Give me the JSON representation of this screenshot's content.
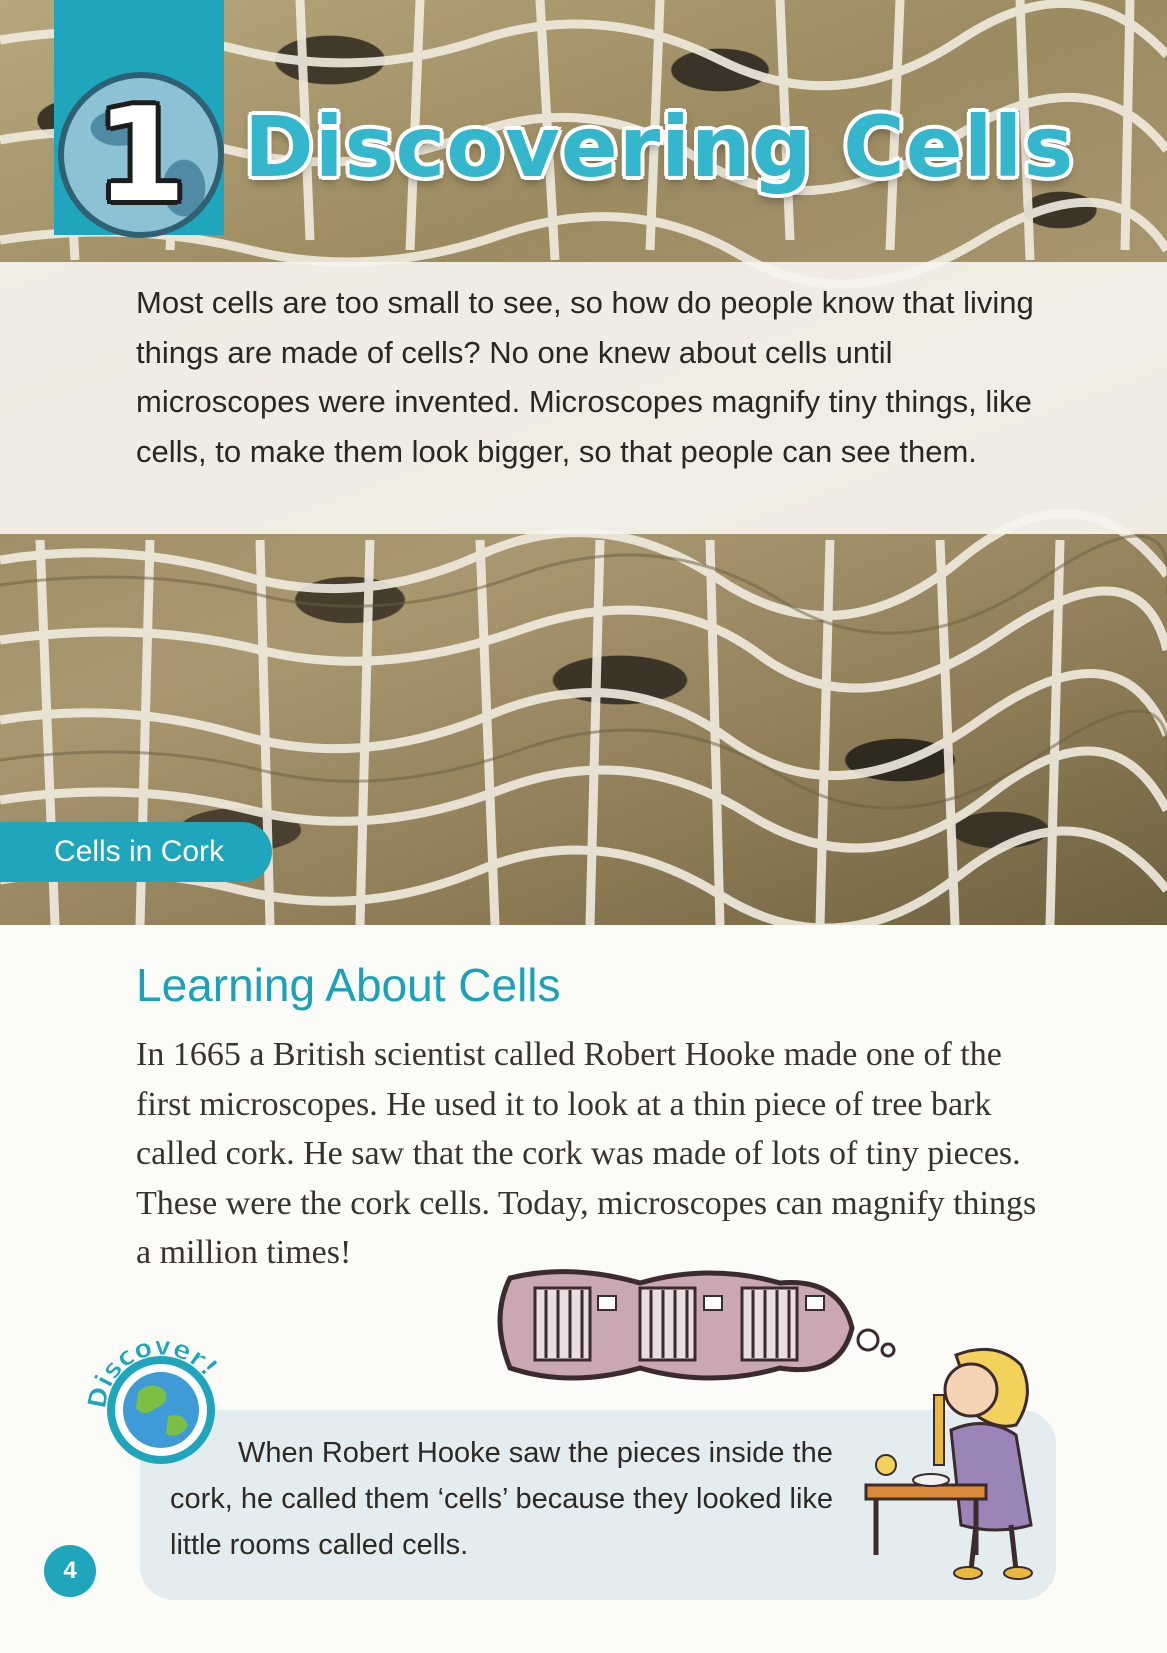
{
  "chapter": {
    "number": "1",
    "title": "Discovering Cells"
  },
  "intro": {
    "text": "Most cells are too small to see, so how do people know that living things are made of cells? No one knew about cells until microscopes were invented. Microscopes magnify tiny things, like cells, to make them look bigger, so that people can see them."
  },
  "photo": {
    "caption": "Cells in Cork"
  },
  "section": {
    "heading": "Learning About Cells",
    "body": "In 1665 a British scientist called Robert Hooke made one of the first microscopes. He used it to look at a thin piece of tree bark called cork. He saw that the cork was made of lots of tiny pieces. These were the cork cells. Today, microscopes can magnify things a million times!"
  },
  "discover": {
    "badge_label": "Discover!",
    "text": "When Robert Hooke saw the pieces inside the cork, he called them ‘cells’ because they looked like little rooms called cells."
  },
  "page": {
    "number": "4"
  },
  "colors": {
    "accent": "#1fa6bd",
    "discover_bg": "#e3ecef"
  }
}
